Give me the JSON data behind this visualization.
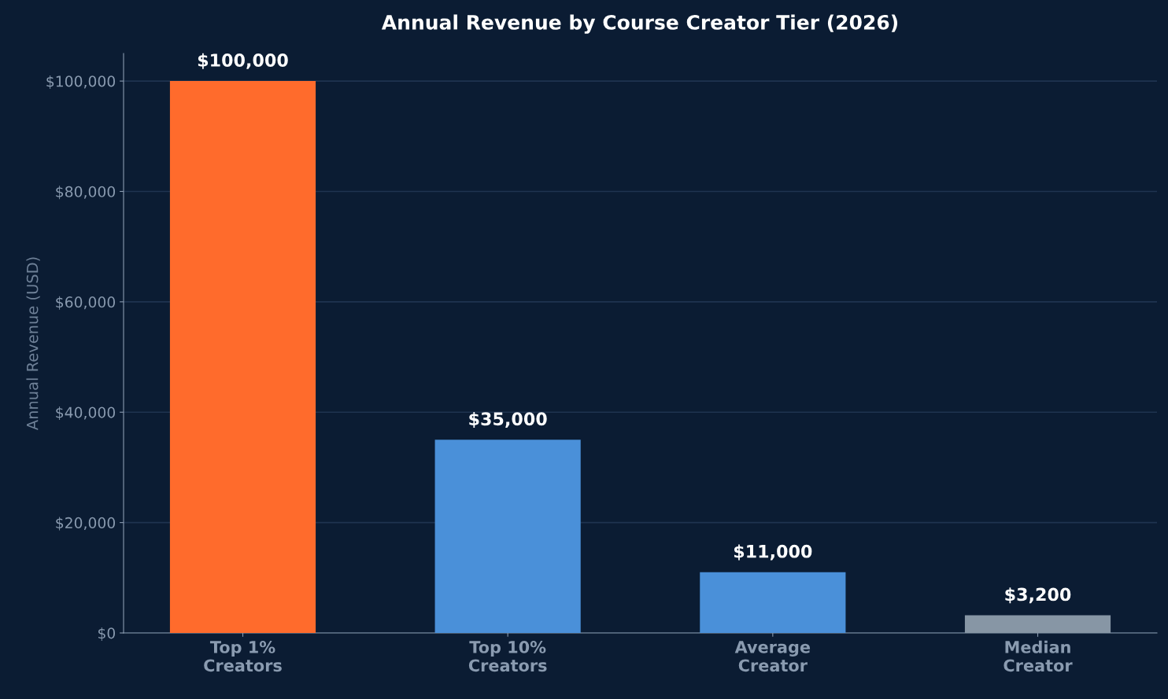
{
  "chart_data": {
    "type": "bar",
    "title": "Annual Revenue by Course Creator Tier (2026)",
    "ylabel": "Annual Revenue (USD)",
    "categories": [
      "Top 1%\nCreators",
      "Top 10%\nCreators",
      "Average\nCreator",
      "Median\nCreator"
    ],
    "values": [
      100000,
      35000,
      11000,
      3200
    ],
    "colors": [
      "#ff6b2c",
      "#4a90d9",
      "#4a90d9",
      "#8796a5"
    ],
    "value_labels": [
      "$100,000",
      "$35,000",
      "$11,000",
      "$3,200"
    ],
    "ylim": [
      0,
      105000
    ],
    "yticks": [
      {
        "value": 0,
        "label": "$0"
      },
      {
        "value": 20000,
        "label": "$20,000"
      },
      {
        "value": 40000,
        "label": "$40,000"
      },
      {
        "value": 60000,
        "label": "$60,000"
      },
      {
        "value": 80000,
        "label": "$80,000"
      },
      {
        "value": 100000,
        "label": "$100,000"
      }
    ],
    "grid": "y",
    "legend": false
  }
}
